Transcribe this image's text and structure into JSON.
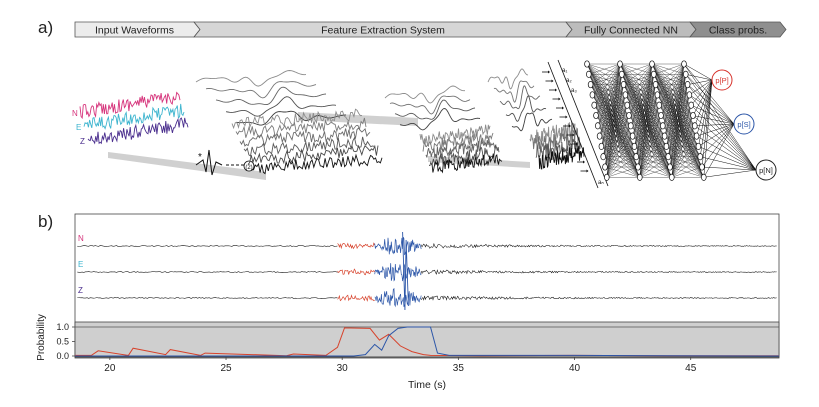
{
  "panel_a": {
    "label": "a)",
    "pipeline": [
      {
        "label": "Input Waveforms",
        "fill": "#ececec"
      },
      {
        "label": "Feature Extraction System",
        "fill": "#d6d6d6"
      },
      {
        "label": "Fully Connected NN",
        "fill": "#bcbcbc"
      },
      {
        "label": "Class probs.",
        "fill": "#8f8f8f"
      }
    ],
    "channels": [
      {
        "label": "N",
        "color": "#d6337b"
      },
      {
        "label": "E",
        "color": "#3fb5cf"
      },
      {
        "label": "Z",
        "color": "#4b2f8e"
      }
    ],
    "conv_op_label": "(2)",
    "neuron_labels": [
      "a₁",
      "a₂",
      "a₃",
      "aₙ"
    ],
    "outputs": [
      {
        "label": "p[P]",
        "color": "#d7332c"
      },
      {
        "label": "p[S]",
        "color": "#2c56a8"
      },
      {
        "label": "p[N]",
        "color": "#222222"
      }
    ]
  },
  "panel_b": {
    "label": "b)",
    "traces": [
      {
        "label": "N",
        "color": "#d6337b"
      },
      {
        "label": "E",
        "color": "#3fb5cf"
      },
      {
        "label": "Z",
        "color": "#4b2f8e"
      }
    ],
    "phase_colors": {
      "p": "#d7432c",
      "s": "#2c56a8",
      "noise": "#111111"
    },
    "prob_panel_bg": "#cfcfcf"
  },
  "chart_data": {
    "type": "line",
    "xlabel": "Time (s)",
    "ylabel": "Probability",
    "xlim": [
      18.5,
      48.8
    ],
    "ylim": [
      0,
      1.0
    ],
    "xticks": [
      20,
      25,
      30,
      35,
      40,
      45
    ],
    "yticks": [
      "0.0",
      "0.5",
      "1.0"
    ],
    "series": [
      {
        "name": "p[P]",
        "color": "#d7432c",
        "x": [
          18.5,
          19.2,
          19.5,
          20.8,
          21,
          22.4,
          22.6,
          23.9,
          24.1,
          27.6,
          27.9,
          29.3,
          29.8,
          30.1,
          31.2,
          31.6,
          32.0,
          32.5,
          33.0,
          33.5,
          33.8,
          36,
          40,
          44,
          48.8
        ],
        "y": [
          0.02,
          0.02,
          0.18,
          0.02,
          0.27,
          0.05,
          0.22,
          0.02,
          0.1,
          0.01,
          0.07,
          0.02,
          0.3,
          0.97,
          0.95,
          0.55,
          0.75,
          0.35,
          0.15,
          0.05,
          0.02,
          0.01,
          0.02,
          0.01,
          0.01
        ]
      },
      {
        "name": "p[S]",
        "color": "#2c56a8",
        "x": [
          18.5,
          30.5,
          31.0,
          31.4,
          31.7,
          32.0,
          32.4,
          32.8,
          33.2,
          33.8,
          34.1,
          34.6,
          40,
          44,
          48.8
        ],
        "y": [
          0.0,
          0.0,
          0.05,
          0.4,
          0.2,
          0.7,
          0.95,
          1.0,
          1.0,
          1.0,
          0.1,
          0.02,
          0.02,
          0.01,
          0.0
        ]
      }
    ]
  }
}
